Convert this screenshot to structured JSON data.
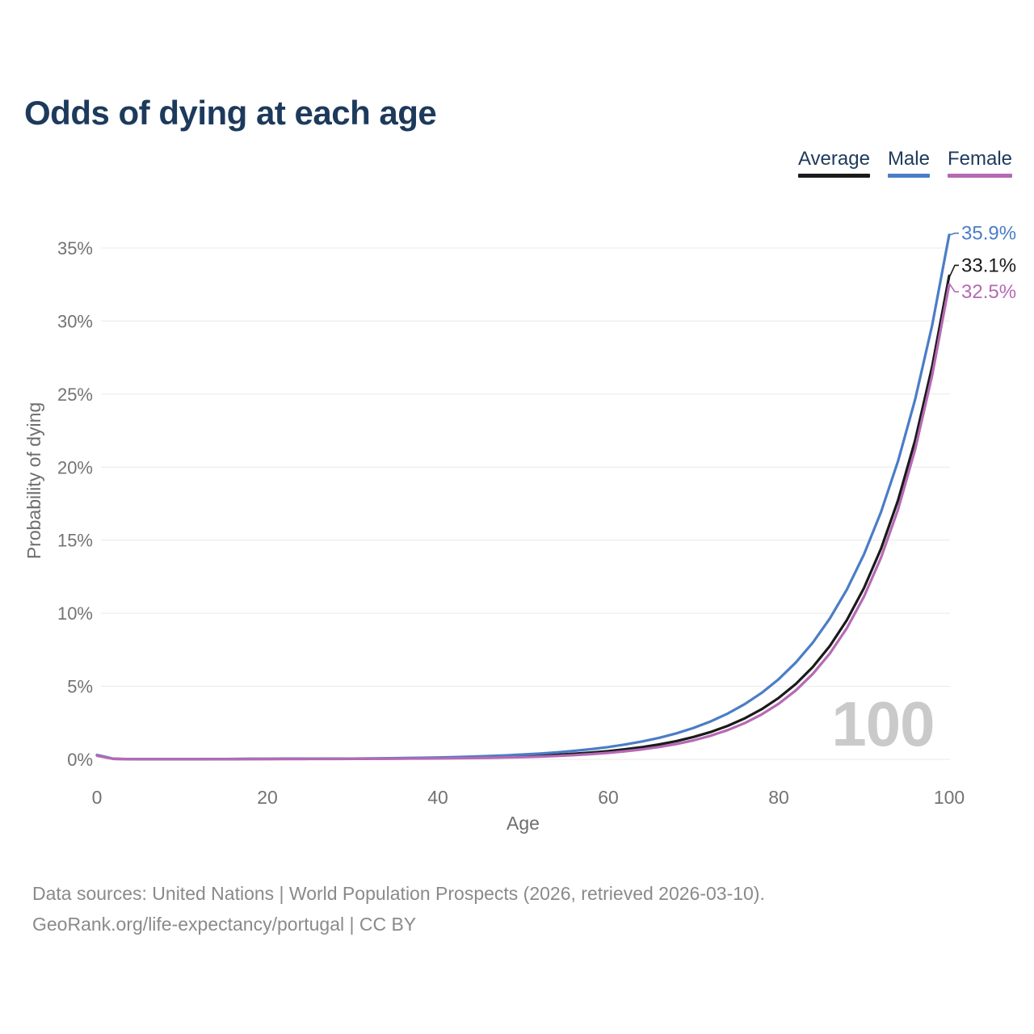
{
  "title": "Odds of dying at each age",
  "legend": {
    "items": [
      {
        "label": "Average",
        "color": "#1a1a1a"
      },
      {
        "label": "Male",
        "color": "#4a7dc6"
      },
      {
        "label": "Female",
        "color": "#b669b4"
      }
    ]
  },
  "watermark": "100",
  "footer": {
    "line1": "Data sources: United Nations | World Population Prospects (2026, retrieved 2026-03-10).",
    "line2": "GeoRank.org/life-expectancy/portugal | CC BY"
  },
  "chart_data": {
    "type": "line",
    "title": "Odds of dying at each age",
    "xlabel": "Age",
    "ylabel": "Probability of dying",
    "xlim": [
      0,
      100
    ],
    "ylim": [
      0,
      36
    ],
    "x_ticks": [
      0,
      20,
      40,
      60,
      80,
      100
    ],
    "y_ticks": [
      0,
      5,
      10,
      15,
      20,
      25,
      30,
      35
    ],
    "y_tick_suffix": "%",
    "grid": "horizontal",
    "legend_position": "top-right",
    "x": [
      0,
      2,
      4,
      6,
      8,
      10,
      12,
      14,
      16,
      18,
      20,
      22,
      24,
      26,
      28,
      30,
      32,
      34,
      36,
      38,
      40,
      42,
      44,
      46,
      48,
      50,
      52,
      54,
      56,
      58,
      60,
      62,
      64,
      66,
      68,
      70,
      72,
      74,
      76,
      78,
      80,
      82,
      84,
      86,
      88,
      90,
      92,
      94,
      96,
      98,
      100
    ],
    "series": [
      {
        "name": "Average",
        "color": "#1a1a1a",
        "end_label": "33.1%",
        "end_value": 33.1,
        "values": [
          0.275,
          0.032,
          0.017,
          0.012,
          0.011,
          0.011,
          0.012,
          0.015,
          0.02,
          0.026,
          0.029,
          0.031,
          0.032,
          0.034,
          0.037,
          0.039,
          0.046,
          0.054,
          0.063,
          0.074,
          0.087,
          0.103,
          0.123,
          0.147,
          0.176,
          0.212,
          0.257,
          0.313,
          0.38,
          0.464,
          0.565,
          0.689,
          0.84,
          1.025,
          1.252,
          1.53,
          1.87,
          2.289,
          2.801,
          3.431,
          4.205,
          5.156,
          6.326,
          7.765,
          9.538,
          11.722,
          14.413,
          17.732,
          21.826,
          26.88,
          33.1
        ]
      },
      {
        "name": "Male",
        "color": "#4a7dc6",
        "end_label": "35.9%",
        "end_value": 35.9,
        "values": [
          0.3,
          0.035,
          0.018,
          0.014,
          0.012,
          0.012,
          0.014,
          0.018,
          0.025,
          0.035,
          0.04,
          0.042,
          0.044,
          0.046,
          0.048,
          0.05,
          0.061,
          0.074,
          0.089,
          0.107,
          0.129,
          0.156,
          0.188,
          0.227,
          0.273,
          0.33,
          0.398,
          0.48,
          0.579,
          0.698,
          0.842,
          1.016,
          1.225,
          1.478,
          1.783,
          2.15,
          2.594,
          3.129,
          3.775,
          4.553,
          5.493,
          6.626,
          7.992,
          9.641,
          11.63,
          14.029,
          16.923,
          20.414,
          24.624,
          29.704,
          35.9
        ]
      },
      {
        "name": "Female",
        "color": "#b669b4",
        "end_label": "32.5%",
        "end_value": 32.5,
        "values": [
          0.25,
          0.028,
          0.015,
          0.011,
          0.01,
          0.01,
          0.011,
          0.013,
          0.016,
          0.018,
          0.02,
          0.022,
          0.024,
          0.026,
          0.029,
          0.032,
          0.036,
          0.041,
          0.047,
          0.054,
          0.062,
          0.073,
          0.087,
          0.104,
          0.126,
          0.152,
          0.188,
          0.234,
          0.289,
          0.359,
          0.445,
          0.552,
          0.684,
          0.847,
          1.05,
          1.302,
          1.613,
          2.0,
          2.478,
          3.072,
          3.807,
          4.718,
          5.848,
          7.248,
          8.983,
          11.134,
          13.8,
          17.104,
          21.199,
          26.274,
          32.5
        ]
      }
    ]
  }
}
